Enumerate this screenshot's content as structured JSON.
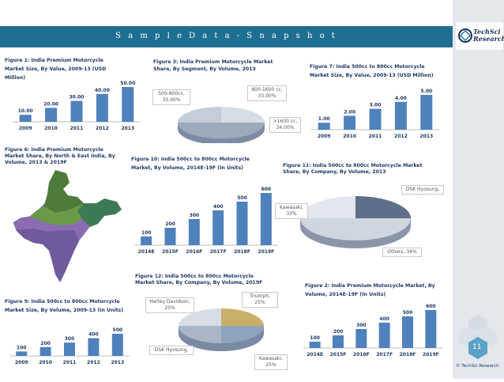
{
  "slide": {
    "title": "S a m p l e   D a t a   -   S n a p s h o t",
    "page_number": "11",
    "copyright": "© TechSci Research",
    "logo_line1": "TechSci",
    "logo_line2": "Research",
    "colors": {
      "banner": "#1f6f93",
      "bar": "#4f81bd",
      "side": "#e4e8ec"
    }
  },
  "chart_data": [
    {
      "id": "fig1",
      "type": "bar",
      "title": "Figure 1: India Premium Motorcycle Market Size, By Value, 2009-13 (USD Million)",
      "categories": [
        "2009",
        "2010",
        "2011",
        "2012",
        "2013"
      ],
      "values": [
        10,
        20,
        30,
        40,
        50
      ],
      "labels": [
        "10.00",
        "20.00",
        "30.00",
        "40.00",
        "50.00"
      ],
      "ylim": [
        0,
        50
      ]
    },
    {
      "id": "fig3",
      "type": "pie",
      "title": "Figure 3: India Premium Motorcycle Market Share, By Segment,  By Volume, 2013",
      "slices": [
        {
          "label": "500-800cc, 33.00%",
          "value": 33
        },
        {
          "label": "800-1600 cc, 33.00%",
          "value": 33
        },
        {
          "label": ">1600 cc, 34.00%",
          "value": 34
        }
      ]
    },
    {
      "id": "fig7",
      "type": "bar",
      "title": "Figure 7: India 500cc to 800cc Motorcycle Market Size, By Value, 2009-13 (USD Million)",
      "categories": [
        "2009",
        "2010",
        "2011",
        "2012",
        "2013"
      ],
      "values": [
        1,
        2,
        3,
        4,
        5
      ],
      "labels": [
        "1.00",
        "2.00",
        "3.00",
        "4.00",
        "5.00"
      ],
      "ylim": [
        0,
        5
      ]
    },
    {
      "id": "fig6",
      "type": "map",
      "title": "Figure 6: India Premium Motorcycle Market Share, By North & East India, By Volume, 2013 & 2019F"
    },
    {
      "id": "fig10",
      "type": "bar",
      "title": "Figure 10: India 500cc to 800cc Motorcycle Market, By Volume, 2014E-19F (In Units)",
      "categories": [
        "2014E",
        "2015F",
        "2016F",
        "2017F",
        "2018F",
        "2019F"
      ],
      "values": [
        100,
        200,
        300,
        400,
        500,
        600
      ],
      "labels": [
        "100",
        "200",
        "300",
        "400",
        "500",
        "600"
      ],
      "ylim": [
        0,
        600
      ]
    },
    {
      "id": "fig11",
      "type": "pie",
      "title": "Figure 11: India 500cc to 800cc Motorcycle Market Share, By Company, By Volume, 2013",
      "slices": [
        {
          "label": "Kawasaki, 33%",
          "value": 33
        },
        {
          "label": "DSK Hyosung,",
          "value": 33
        },
        {
          "label": "Others, 34%",
          "value": 34
        }
      ]
    },
    {
      "id": "fig12",
      "type": "pie",
      "title": "Figure 12: India 500cc to 800cc Motorcycle Market Share, By Company, By Volume, 2019F",
      "slices": [
        {
          "label": "Harley Davidson, 25%",
          "value": 25
        },
        {
          "label": "Triumph, 25%",
          "value": 25
        },
        {
          "label": "Kawasaki, 25%",
          "value": 25
        },
        {
          "label": "DSK Hyosung,",
          "value": 25
        }
      ]
    },
    {
      "id": "fig9",
      "type": "bar",
      "title": "Figure 9: India 500cc to 800cc Motorcycle Market Size, By Volume, 2009-13 (In Units)",
      "categories": [
        "2009",
        "2010",
        "2011",
        "2012",
        "2013"
      ],
      "values": [
        100,
        200,
        300,
        400,
        500
      ],
      "labels": [
        "100",
        "200",
        "300",
        "400",
        "500"
      ],
      "ylim": [
        0,
        500
      ]
    },
    {
      "id": "fig2",
      "type": "bar",
      "title": "Figure 2: India Premium Motorcycle Market, By Volume, 2014E-19F (In Units)",
      "categories": [
        "2014E",
        "2015F",
        "2016F",
        "2017F",
        "2018F",
        "2019F"
      ],
      "values": [
        100,
        200,
        300,
        400,
        500,
        600
      ],
      "labels": [
        "100",
        "200",
        "300",
        "400",
        "500",
        "600"
      ],
      "ylim": [
        0,
        600
      ]
    }
  ]
}
